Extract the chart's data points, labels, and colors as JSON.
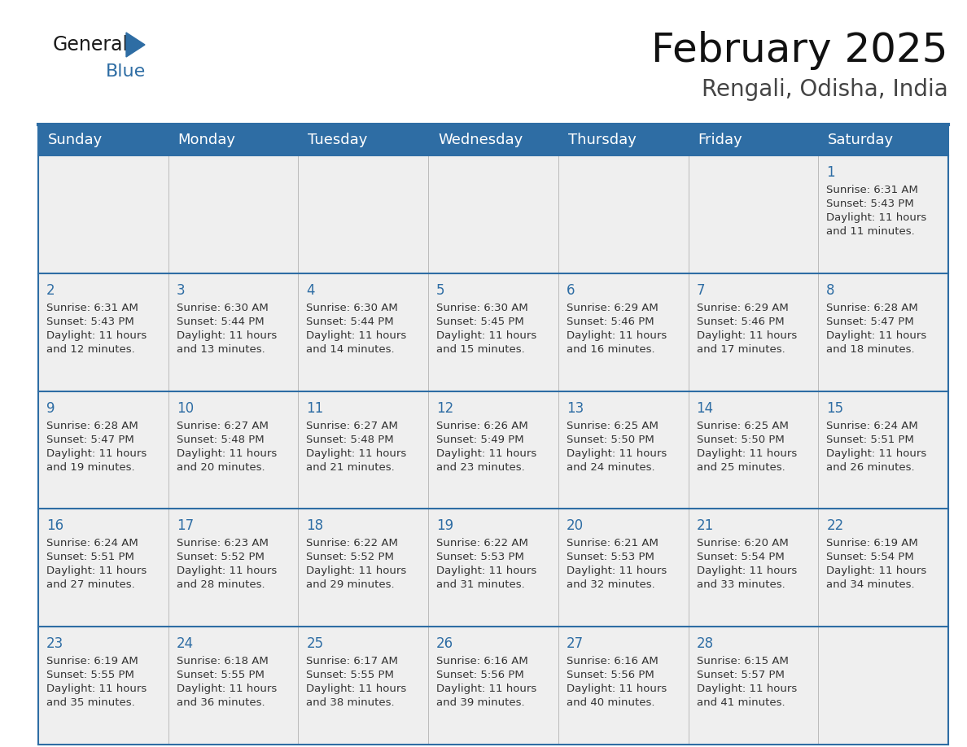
{
  "title": "February 2025",
  "subtitle": "Rengali, Odisha, India",
  "header_bg": "#2E6DA4",
  "header_text_color": "#FFFFFF",
  "cell_bg": "#EFEFEF",
  "day_number_color": "#2E6DA4",
  "info_text_color": "#333333",
  "line_color": "#2E6DA4",
  "days_of_week": [
    "Sunday",
    "Monday",
    "Tuesday",
    "Wednesday",
    "Thursday",
    "Friday",
    "Saturday"
  ],
  "weeks": [
    [
      {
        "day": null,
        "info": ""
      },
      {
        "day": null,
        "info": ""
      },
      {
        "day": null,
        "info": ""
      },
      {
        "day": null,
        "info": ""
      },
      {
        "day": null,
        "info": ""
      },
      {
        "day": null,
        "info": ""
      },
      {
        "day": 1,
        "info": "Sunrise: 6:31 AM\nSunset: 5:43 PM\nDaylight: 11 hours\nand 11 minutes."
      }
    ],
    [
      {
        "day": 2,
        "info": "Sunrise: 6:31 AM\nSunset: 5:43 PM\nDaylight: 11 hours\nand 12 minutes."
      },
      {
        "day": 3,
        "info": "Sunrise: 6:30 AM\nSunset: 5:44 PM\nDaylight: 11 hours\nand 13 minutes."
      },
      {
        "day": 4,
        "info": "Sunrise: 6:30 AM\nSunset: 5:44 PM\nDaylight: 11 hours\nand 14 minutes."
      },
      {
        "day": 5,
        "info": "Sunrise: 6:30 AM\nSunset: 5:45 PM\nDaylight: 11 hours\nand 15 minutes."
      },
      {
        "day": 6,
        "info": "Sunrise: 6:29 AM\nSunset: 5:46 PM\nDaylight: 11 hours\nand 16 minutes."
      },
      {
        "day": 7,
        "info": "Sunrise: 6:29 AM\nSunset: 5:46 PM\nDaylight: 11 hours\nand 17 minutes."
      },
      {
        "day": 8,
        "info": "Sunrise: 6:28 AM\nSunset: 5:47 PM\nDaylight: 11 hours\nand 18 minutes."
      }
    ],
    [
      {
        "day": 9,
        "info": "Sunrise: 6:28 AM\nSunset: 5:47 PM\nDaylight: 11 hours\nand 19 minutes."
      },
      {
        "day": 10,
        "info": "Sunrise: 6:27 AM\nSunset: 5:48 PM\nDaylight: 11 hours\nand 20 minutes."
      },
      {
        "day": 11,
        "info": "Sunrise: 6:27 AM\nSunset: 5:48 PM\nDaylight: 11 hours\nand 21 minutes."
      },
      {
        "day": 12,
        "info": "Sunrise: 6:26 AM\nSunset: 5:49 PM\nDaylight: 11 hours\nand 23 minutes."
      },
      {
        "day": 13,
        "info": "Sunrise: 6:25 AM\nSunset: 5:50 PM\nDaylight: 11 hours\nand 24 minutes."
      },
      {
        "day": 14,
        "info": "Sunrise: 6:25 AM\nSunset: 5:50 PM\nDaylight: 11 hours\nand 25 minutes."
      },
      {
        "day": 15,
        "info": "Sunrise: 6:24 AM\nSunset: 5:51 PM\nDaylight: 11 hours\nand 26 minutes."
      }
    ],
    [
      {
        "day": 16,
        "info": "Sunrise: 6:24 AM\nSunset: 5:51 PM\nDaylight: 11 hours\nand 27 minutes."
      },
      {
        "day": 17,
        "info": "Sunrise: 6:23 AM\nSunset: 5:52 PM\nDaylight: 11 hours\nand 28 minutes."
      },
      {
        "day": 18,
        "info": "Sunrise: 6:22 AM\nSunset: 5:52 PM\nDaylight: 11 hours\nand 29 minutes."
      },
      {
        "day": 19,
        "info": "Sunrise: 6:22 AM\nSunset: 5:53 PM\nDaylight: 11 hours\nand 31 minutes."
      },
      {
        "day": 20,
        "info": "Sunrise: 6:21 AM\nSunset: 5:53 PM\nDaylight: 11 hours\nand 32 minutes."
      },
      {
        "day": 21,
        "info": "Sunrise: 6:20 AM\nSunset: 5:54 PM\nDaylight: 11 hours\nand 33 minutes."
      },
      {
        "day": 22,
        "info": "Sunrise: 6:19 AM\nSunset: 5:54 PM\nDaylight: 11 hours\nand 34 minutes."
      }
    ],
    [
      {
        "day": 23,
        "info": "Sunrise: 6:19 AM\nSunset: 5:55 PM\nDaylight: 11 hours\nand 35 minutes."
      },
      {
        "day": 24,
        "info": "Sunrise: 6:18 AM\nSunset: 5:55 PM\nDaylight: 11 hours\nand 36 minutes."
      },
      {
        "day": 25,
        "info": "Sunrise: 6:17 AM\nSunset: 5:55 PM\nDaylight: 11 hours\nand 38 minutes."
      },
      {
        "day": 26,
        "info": "Sunrise: 6:16 AM\nSunset: 5:56 PM\nDaylight: 11 hours\nand 39 minutes."
      },
      {
        "day": 27,
        "info": "Sunrise: 6:16 AM\nSunset: 5:56 PM\nDaylight: 11 hours\nand 40 minutes."
      },
      {
        "day": 28,
        "info": "Sunrise: 6:15 AM\nSunset: 5:57 PM\nDaylight: 11 hours\nand 41 minutes."
      },
      {
        "day": null,
        "info": ""
      }
    ]
  ],
  "logo_general_color": "#1a1a1a",
  "logo_blue_color": "#2E6DA4",
  "title_fontsize": 36,
  "subtitle_fontsize": 20,
  "header_fontsize": 13,
  "day_num_fontsize": 12,
  "info_fontsize": 9.5
}
